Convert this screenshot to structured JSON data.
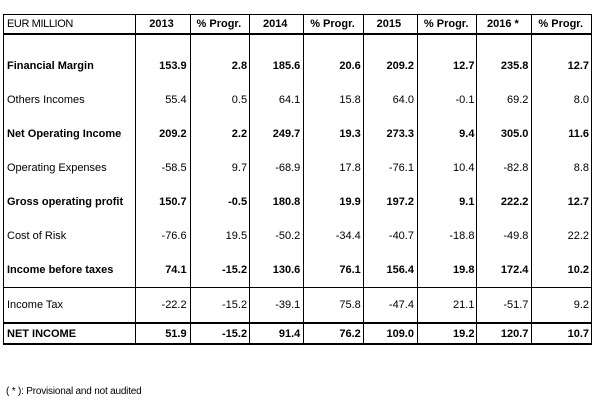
{
  "table": {
    "corner_label": "EUR MILLION",
    "headers": [
      "2013",
      "% Progr.",
      "2014",
      "% Progr.",
      "2015",
      "% Progr.",
      "2016 *",
      "% Progr."
    ],
    "rows": [
      {
        "label": "Financial Margin",
        "bold": true,
        "values": [
          "153.9",
          "2.8",
          "185.6",
          "20.6",
          "209.2",
          "12.7",
          "235.8",
          "12.7"
        ]
      },
      {
        "label": "Others Incomes",
        "bold": false,
        "values": [
          "55.4",
          "0.5",
          "64.1",
          "15.8",
          "64.0",
          "-0.1",
          "69.2",
          "8.0"
        ]
      },
      {
        "label": "Net Operating Income",
        "bold": true,
        "values": [
          "209.2",
          "2.2",
          "249.7",
          "19.3",
          "273.3",
          "9.4",
          "305.0",
          "11.6"
        ]
      },
      {
        "label": "Operating Expenses",
        "bold": false,
        "values": [
          "-58.5",
          "9.7",
          "-68.9",
          "17.8",
          "-76.1",
          "10.4",
          "-82.8",
          "8.8"
        ]
      },
      {
        "label": " Gross operating profit",
        "bold": true,
        "values": [
          "150.7",
          "-0.5",
          "180.8",
          "19.9",
          "197.2",
          "9.1",
          "222.2",
          "12.7"
        ]
      },
      {
        "label": "Cost of Risk",
        "bold": false,
        "values": [
          "-76.6",
          "19.5",
          "-50.2",
          "-34.4",
          "-40.7",
          "-18.8",
          "-49.8",
          "22.2"
        ]
      },
      {
        "label": "Income before taxes",
        "bold": true,
        "values": [
          "74.1",
          "-15.2",
          "130.6",
          "76.1",
          "156.4",
          "19.8",
          "172.4",
          "10.2"
        ]
      },
      {
        "label": "Income Tax",
        "bold": false,
        "values": [
          "-22.2",
          "-15.2",
          "-39.1",
          "75.8",
          "-47.4",
          "21.1",
          "-51.7",
          "9.2"
        ]
      },
      {
        "label": "NET INCOME",
        "bold": true,
        "values": [
          "51.9",
          "-15.2",
          "91.4",
          "76.2",
          "109.0",
          "19.2",
          "120.7",
          "10.7"
        ]
      }
    ]
  },
  "footnote": "( * ): Provisional and not audited"
}
